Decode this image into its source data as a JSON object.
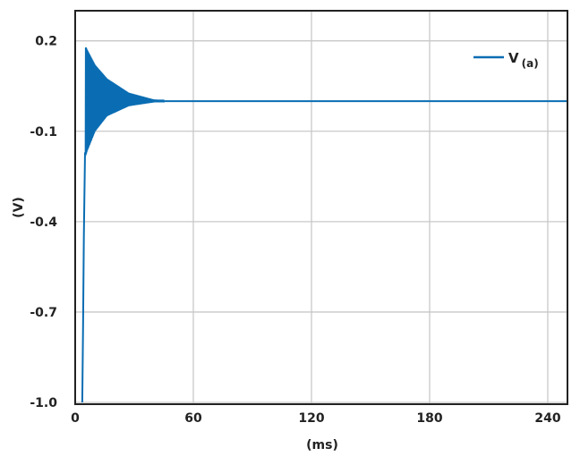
{
  "chart_data": {
    "type": "line",
    "title": "",
    "xlabel": "(ms)",
    "ylabel": "(V)",
    "xlim": [
      0,
      250
    ],
    "ylim": [
      -1.0,
      0.3
    ],
    "xticks": [
      "0",
      "60",
      "120",
      "180",
      "240"
    ],
    "yticks": [
      "0.2",
      "-0.1",
      "-0.4",
      "-0.7",
      "-1.0"
    ],
    "grid": true,
    "legend": "top-right",
    "series": [
      {
        "name": "V",
        "name_subscript": "(a)",
        "color": "#0a6db3",
        "rise": {
          "x": [
            3.6,
            4.0,
            4.4,
            5.0
          ],
          "y": [
            -1.0,
            -0.75,
            -0.45,
            -0.17
          ]
        },
        "steady_state": 0.0,
        "upper_envelope": {
          "x": [
            5.3,
            6,
            10,
            16,
            27,
            40,
            250
          ],
          "y": [
            0.18,
            0.17,
            0.12,
            0.075,
            0.028,
            0.005,
            0.0
          ]
        },
        "lower_envelope": {
          "x": [
            5.3,
            6,
            10,
            16,
            27,
            40,
            250
          ],
          "y": [
            -0.18,
            -0.165,
            -0.1,
            -0.05,
            -0.017,
            -0.004,
            0.0
          ]
        }
      }
    ]
  }
}
